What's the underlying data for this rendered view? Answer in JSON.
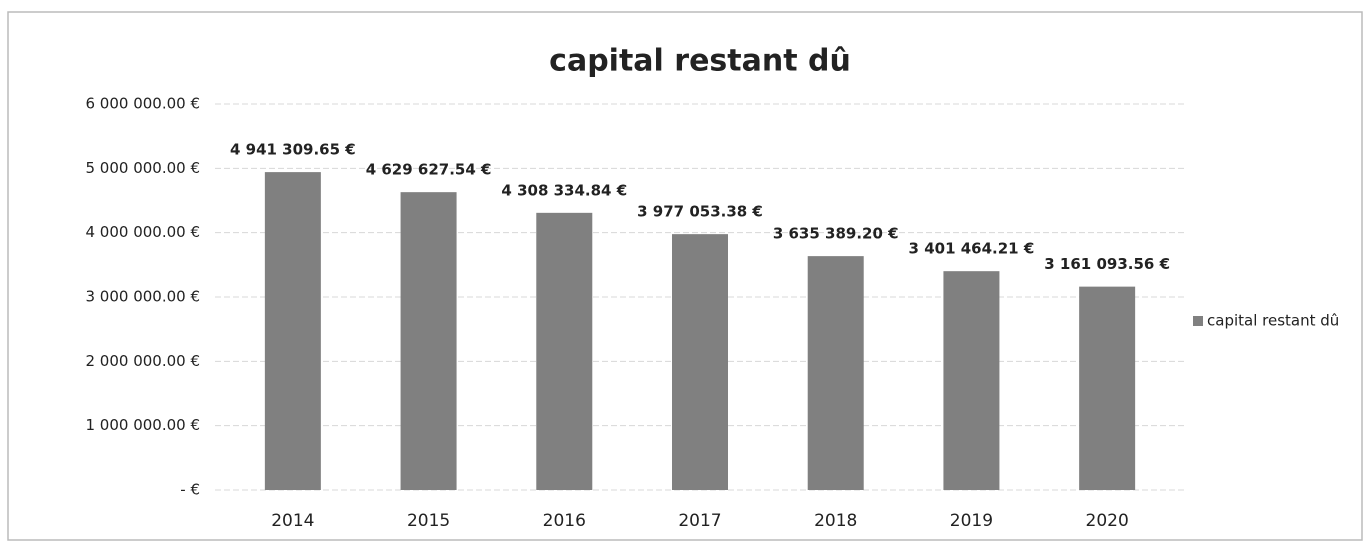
{
  "chart_data": {
    "type": "bar",
    "title": "capital restant dû",
    "categories": [
      "2014",
      "2015",
      "2016",
      "2017",
      "2018",
      "2019",
      "2020"
    ],
    "series": [
      {
        "name": "capital restant dû",
        "color": "#808080",
        "values": [
          4941309.65,
          4629627.54,
          4308334.84,
          3977053.38,
          3635389.2,
          3401464.21,
          3161093.56
        ],
        "value_labels": [
          "4 941 309.65 €",
          "4 629 627.54 €",
          "4 308 334.84 €",
          "3 977 053.38 €",
          "3 635 389.20 €",
          "3 401 464.21 €",
          "3 161 093.56 €"
        ]
      }
    ],
    "ylim": [
      0,
      6000000
    ],
    "yticks": [
      {
        "value": 0,
        "label": "-   €"
      },
      {
        "value": 1000000,
        "label": "1 000 000.00 €"
      },
      {
        "value": 2000000,
        "label": "2 000 000.00 €"
      },
      {
        "value": 3000000,
        "label": "3 000 000.00 €"
      },
      {
        "value": 4000000,
        "label": "4 000 000.00 €"
      },
      {
        "value": 5000000,
        "label": "5 000 000.00 €"
      },
      {
        "value": 6000000,
        "label": "6 000 000.00 €"
      }
    ],
    "grid": true,
    "legend": "right"
  }
}
